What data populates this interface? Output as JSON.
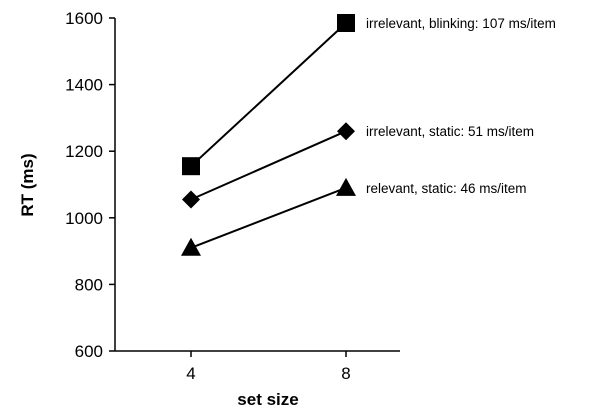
{
  "chart_data": {
    "type": "line",
    "title": "",
    "xlabel": "set size",
    "ylabel": "RT (ms)",
    "x": [
      4,
      8
    ],
    "x_tick_labels": [
      "4",
      "8"
    ],
    "ylim": [
      600,
      1600
    ],
    "y_ticks": [
      600,
      800,
      1000,
      1200,
      1400,
      1600
    ],
    "grid": false,
    "legend": "labels at line ends (right)",
    "series": [
      {
        "name": "irrelevant, blinking:  107 ms/item",
        "marker": "square",
        "values": [
          1155,
          1585
        ]
      },
      {
        "name": "irrelevant, static:  51 ms/item",
        "marker": "diamond",
        "values": [
          1055,
          1260
        ]
      },
      {
        "name": "relevant, static:  46 ms/item",
        "marker": "triangle",
        "values": [
          910,
          1090
        ]
      }
    ],
    "colors": {
      "line": "#000000",
      "marker": "#000000"
    }
  }
}
